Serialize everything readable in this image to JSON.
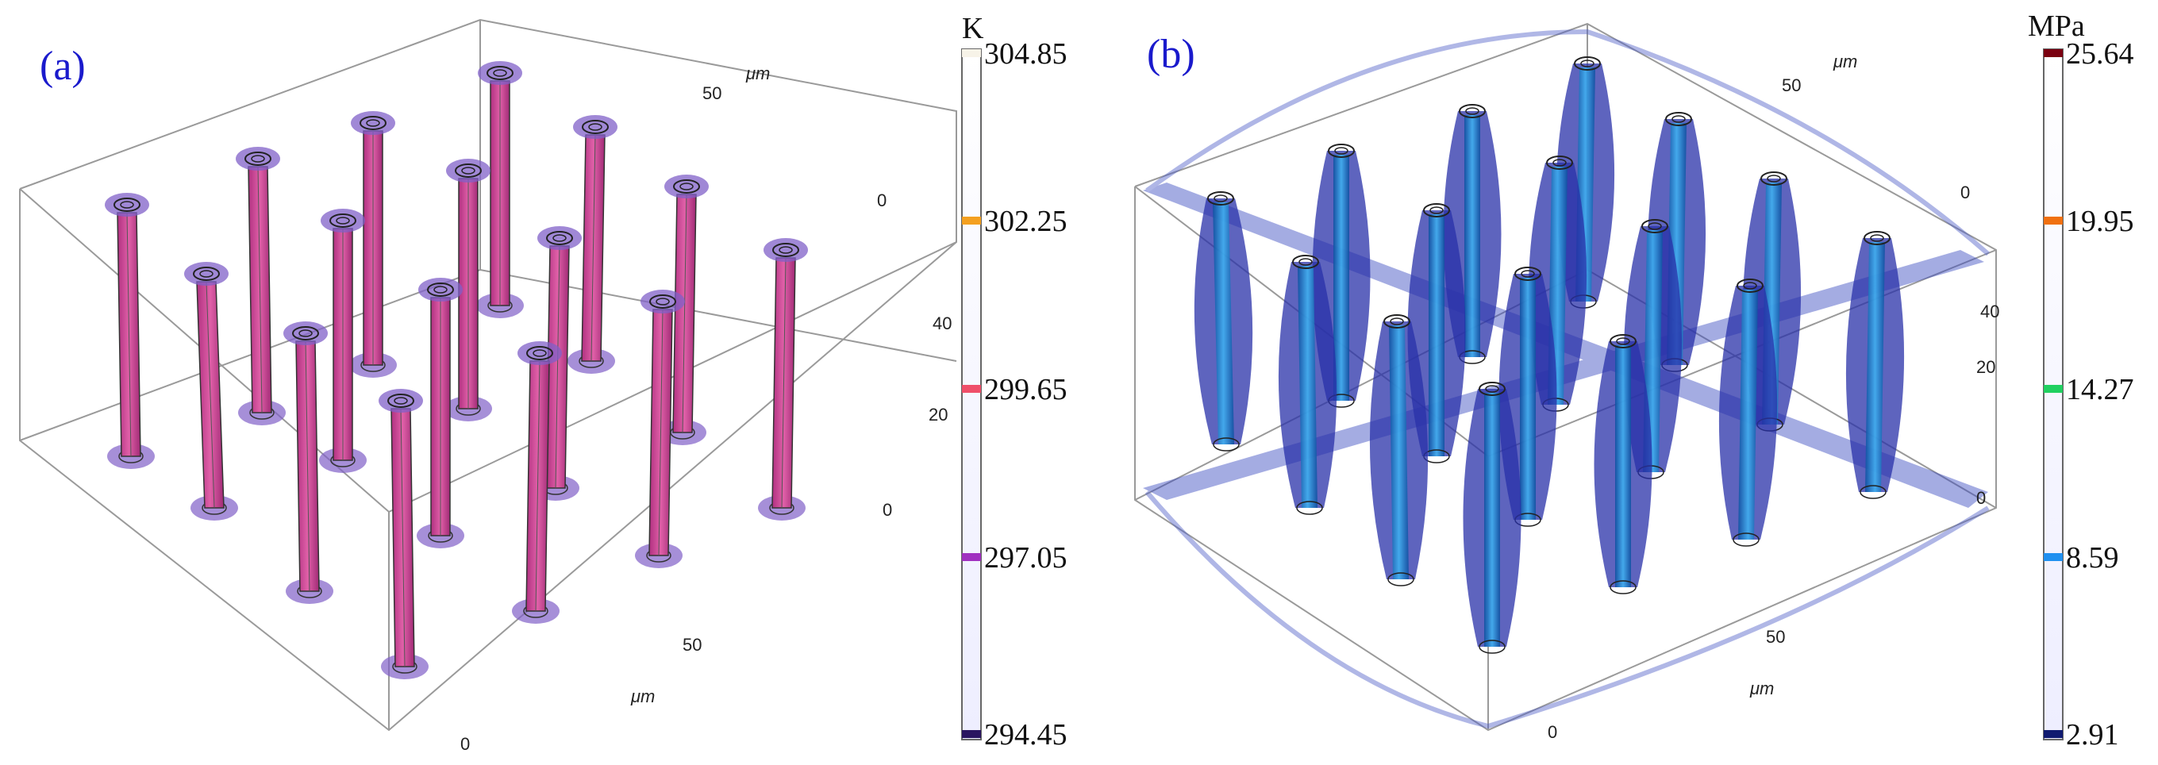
{
  "panel_a": {
    "label": "(a)",
    "unit": "K",
    "colorbar_ticks": [
      "304.85",
      "302.25",
      "299.65",
      "297.05",
      "294.45"
    ],
    "colorbar_tick_colors": [
      "#f7f3e8",
      "#f4a020",
      "#ef4f6a",
      "#a030c0",
      "#2a1560"
    ],
    "axis_labels": {
      "top_50": "50",
      "top_unit": "μm",
      "right_0": "0",
      "right_40": "40",
      "right_20": "20",
      "right_00": "0",
      "bottom_50": "50",
      "bottom_unit": "μm",
      "bottom_0": "0"
    },
    "pillar_color": "#d34a9b",
    "cap_color": "#7b5bc6"
  },
  "panel_b": {
    "label": "(b)",
    "unit": "MPa",
    "colorbar_ticks": [
      "25.64",
      "19.95",
      "14.27",
      "8.59",
      "2.91"
    ],
    "colorbar_tick_colors": [
      "#7a0010",
      "#f07010",
      "#20d060",
      "#2090f0",
      "#101a70"
    ],
    "axis_labels": {
      "top_50": "50",
      "top_unit": "μm",
      "right_0": "0",
      "right_40": "40",
      "right_20": "20",
      "right_00": "0",
      "bottom_50": "50",
      "bottom_unit": "μm",
      "bottom_0": "0"
    },
    "pillar_color": "#1a7fd0",
    "halo_color": "#3038b0"
  }
}
